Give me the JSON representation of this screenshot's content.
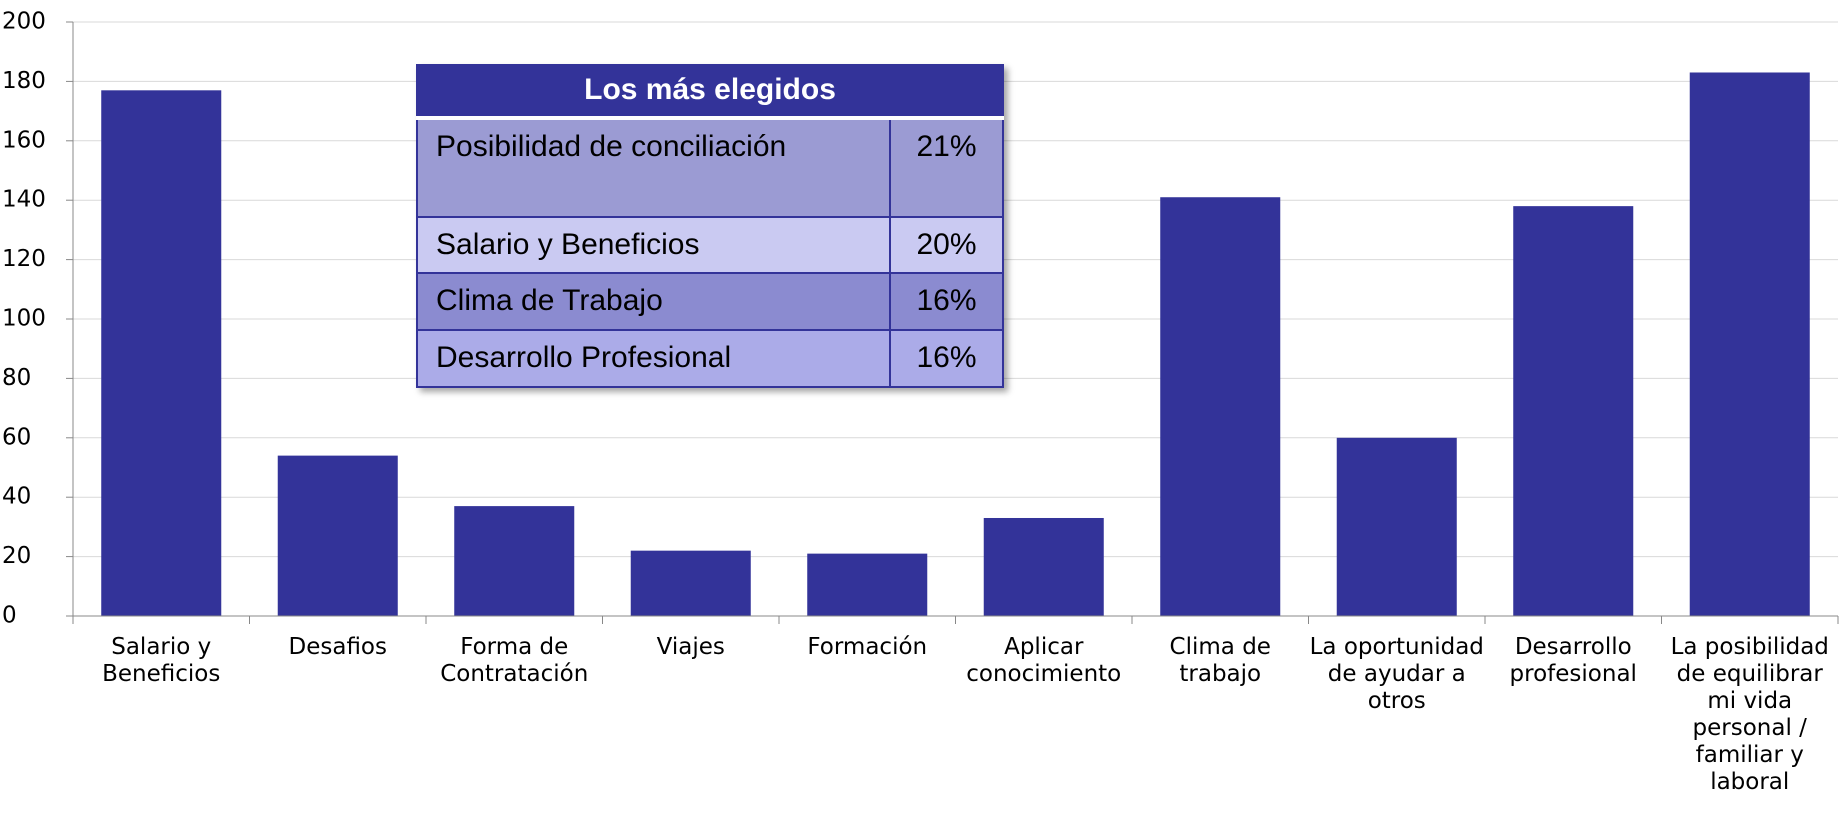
{
  "chart_data": {
    "type": "bar",
    "categories": [
      "Salario y Beneficios",
      "Desafios",
      "Forma de Contratación",
      "Viajes",
      "Formación",
      "Aplicar conocimiento",
      "Clima de trabajo",
      "La oportunidad de ayudar a otros",
      "Desarrollo profesional",
      "La posibilidad de equilibrar mi vida personal / familiar y laboral"
    ],
    "values": [
      177,
      54,
      37,
      22,
      21,
      33,
      141,
      60,
      138,
      183
    ],
    "color": "#333399",
    "ylim": [
      0,
      200
    ],
    "yticks": [
      0,
      20,
      40,
      60,
      80,
      100,
      120,
      140,
      160,
      180,
      200
    ],
    "grid": true,
    "table": {
      "title": "Los más elegidos",
      "rows": [
        [
          "Posibilidad de conciliación",
          "21%"
        ],
        [
          "Salario y Beneficios",
          "20%"
        ],
        [
          "Clima de Trabajo",
          "16%"
        ],
        [
          "Desarrollo Profesional",
          "16%"
        ]
      ]
    }
  }
}
